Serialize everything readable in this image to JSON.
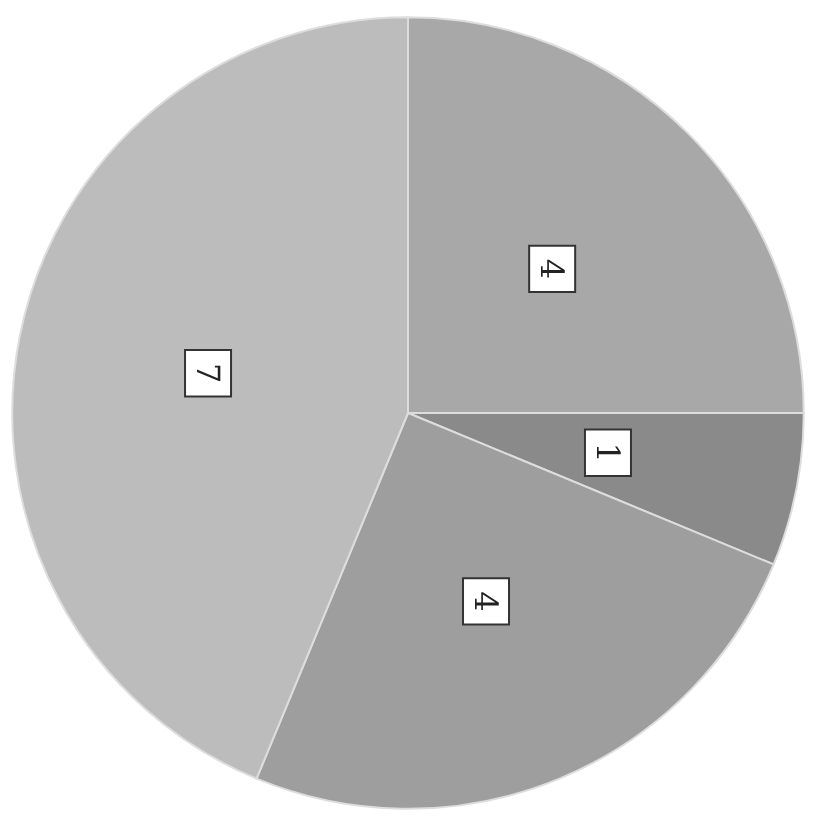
{
  "chart_data": {
    "type": "pie",
    "categories": [
      null,
      null,
      null,
      null
    ],
    "values": [
      4,
      1,
      4,
      7
    ],
    "colors": [
      "#a8a8a8",
      "#8a8a8a",
      "#9e9e9e",
      "#bcbcbc"
    ],
    "data_labels": true
  }
}
